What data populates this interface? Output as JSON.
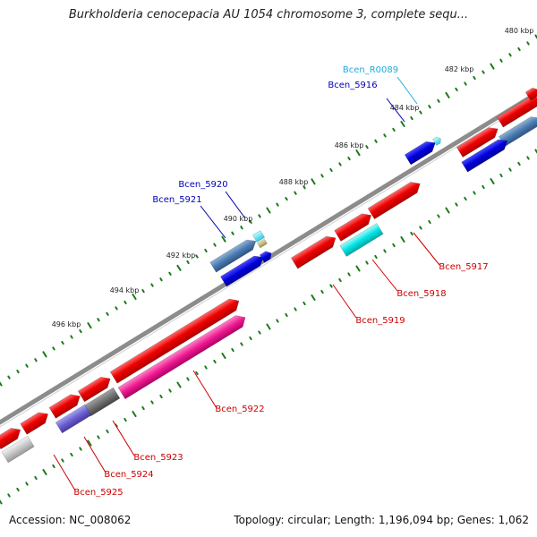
{
  "title": "Burkholderia cenocepacia AU 1054 chromosome 3, complete sequ...",
  "footer": {
    "accession": "Accession: NC_008062",
    "summary": "Topology: circular; Length: 1,196,094 bp; Genes: 1,062"
  },
  "colors": {
    "forward_gene": "#ee0000",
    "reverse_gene": "#0000dd",
    "backbone": "#808080",
    "tick": "#1a7a1a",
    "label_red": "#cc0000",
    "label_blue": "#0000bb",
    "label_cyan": "#22aadd"
  },
  "ruler_labels": [
    "480 kbp",
    "482 kbp",
    "484 kbp",
    "486 kbp",
    "488 kbp",
    "490 kbp",
    "492 kbp",
    "494 kbp",
    "496 kbp"
  ],
  "gene_labels": [
    "Bcen_R0089",
    "Bcen_5916",
    "Bcen_5920",
    "Bcen_5921",
    "Bcen_5917",
    "Bcen_5918",
    "Bcen_5919",
    "Bcen_5922",
    "Bcen_5923",
    "Bcen_5924",
    "Bcen_5925"
  ]
}
